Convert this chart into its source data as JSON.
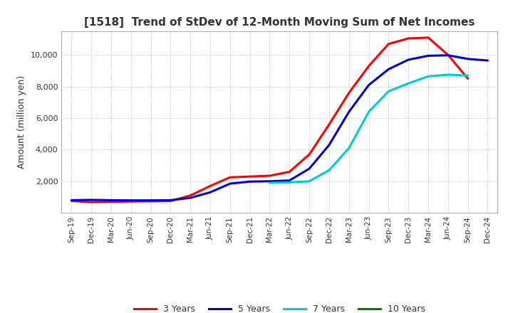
{
  "title": "[1518]  Trend of StDev of 12-Month Moving Sum of Net Incomes",
  "ylabel": "Amount (million yen)",
  "background_color": "#ffffff",
  "grid_color": "#999999",
  "ylim": [
    0,
    11500
  ],
  "yticks": [
    2000,
    4000,
    6000,
    8000,
    10000
  ],
  "series": {
    "3 Years": {
      "color": "#ff0000",
      "data": [
        [
          "Sep-19",
          750
        ],
        [
          "Dec-19",
          680
        ],
        [
          "Mar-20",
          700
        ],
        [
          "Jun-20",
          720
        ],
        [
          "Sep-20",
          730
        ],
        [
          "Dec-20",
          750
        ],
        [
          "Mar-21",
          1100
        ],
        [
          "Jun-21",
          1700
        ],
        [
          "Sep-21",
          2250
        ],
        [
          "Dec-21",
          2300
        ],
        [
          "Mar-22",
          2350
        ],
        [
          "Jun-22",
          2600
        ],
        [
          "Sep-22",
          3700
        ],
        [
          "Dec-22",
          5600
        ],
        [
          "Mar-23",
          7600
        ],
        [
          "Jun-23",
          9300
        ],
        [
          "Sep-23",
          10700
        ],
        [
          "Dec-23",
          11050
        ],
        [
          "Mar-24",
          11100
        ],
        [
          "Jun-24",
          10000
        ],
        [
          "Sep-24",
          8500
        ]
      ]
    },
    "5 Years": {
      "color": "#0000dd",
      "data": [
        [
          "Sep-19",
          800
        ],
        [
          "Dec-19",
          820
        ],
        [
          "Mar-20",
          800
        ],
        [
          "Jun-20",
          790
        ],
        [
          "Sep-20",
          790
        ],
        [
          "Dec-20",
          800
        ],
        [
          "Mar-21",
          950
        ],
        [
          "Jun-21",
          1300
        ],
        [
          "Sep-21",
          1850
        ],
        [
          "Dec-21",
          1980
        ],
        [
          "Mar-22",
          2000
        ],
        [
          "Jun-22",
          2050
        ],
        [
          "Sep-22",
          2800
        ],
        [
          "Dec-22",
          4300
        ],
        [
          "Mar-23",
          6400
        ],
        [
          "Jun-23",
          8100
        ],
        [
          "Sep-23",
          9100
        ],
        [
          "Dec-23",
          9700
        ],
        [
          "Mar-24",
          9950
        ],
        [
          "Jun-24",
          9980
        ],
        [
          "Sep-24",
          9750
        ],
        [
          "Dec-24",
          9650
        ]
      ]
    },
    "7 Years": {
      "color": "#00cccc",
      "data": [
        [
          "Mar-22",
          1900
        ],
        [
          "Jun-22",
          1930
        ],
        [
          "Sep-22",
          2000
        ],
        [
          "Dec-22",
          2700
        ],
        [
          "Mar-23",
          4100
        ],
        [
          "Jun-23",
          6400
        ],
        [
          "Sep-23",
          7700
        ],
        [
          "Dec-23",
          8200
        ],
        [
          "Mar-24",
          8650
        ],
        [
          "Jun-24",
          8750
        ],
        [
          "Sep-24",
          8700
        ]
      ]
    },
    "10 Years": {
      "color": "#008000",
      "data": []
    }
  },
  "x_labels": [
    "Sep-19",
    "Dec-19",
    "Mar-20",
    "Jun-20",
    "Sep-20",
    "Dec-20",
    "Mar-21",
    "Jun-21",
    "Sep-21",
    "Dec-21",
    "Mar-22",
    "Jun-22",
    "Sep-22",
    "Dec-22",
    "Mar-23",
    "Jun-23",
    "Sep-23",
    "Dec-23",
    "Mar-24",
    "Jun-24",
    "Sep-24",
    "Dec-24"
  ],
  "x_label_indices": {
    "Sep-19": 0,
    "Dec-19": 1,
    "Mar-20": 2,
    "Jun-20": 3,
    "Sep-20": 4,
    "Dec-20": 5,
    "Mar-21": 6,
    "Jun-21": 7,
    "Sep-21": 8,
    "Dec-21": 9,
    "Mar-22": 10,
    "Jun-22": 11,
    "Sep-22": 12,
    "Dec-22": 13,
    "Mar-23": 14,
    "Jun-23": 15,
    "Sep-23": 16,
    "Dec-23": 17,
    "Mar-24": 18,
    "Jun-24": 19,
    "Sep-24": 20,
    "Dec-24": 21
  }
}
